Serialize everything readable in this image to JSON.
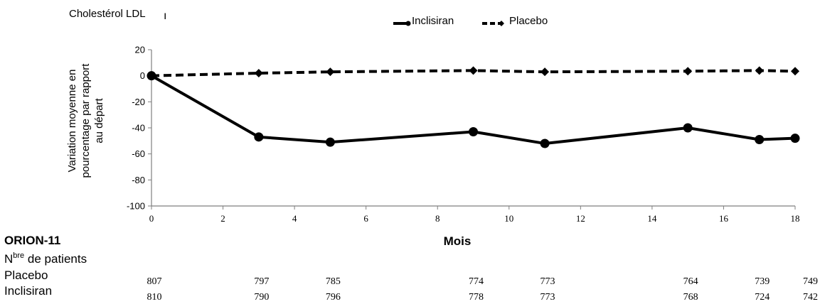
{
  "chart_data": {
    "type": "line",
    "title": "Cholestérol LDL",
    "ylabel": [
      "Variation moyenne en",
      "pourcentage par rapport",
      "au départ"
    ],
    "xlabel": "Mois",
    "xlim": [
      0,
      18
    ],
    "ylim": [
      -100,
      20
    ],
    "xticks": [
      0,
      2,
      4,
      6,
      8,
      10,
      12,
      14,
      16,
      18
    ],
    "yticks": [
      20,
      0,
      -20,
      -40,
      -60,
      -80,
      -100
    ],
    "ytick_labels": [
      "20",
      "0",
      "-20",
      "-40",
      "-60",
      "-80",
      "-100"
    ],
    "grid": false,
    "legend_position": "top-center",
    "series": [
      {
        "name": "Inclisiran",
        "style": "solid",
        "marker": "circle",
        "color": "#000000",
        "points": [
          [
            0,
            0
          ],
          [
            3,
            -47
          ],
          [
            5,
            -51
          ],
          [
            9,
            -43
          ],
          [
            11,
            -52
          ],
          [
            15,
            -40
          ],
          [
            17,
            -49
          ],
          [
            18,
            -48
          ]
        ]
      },
      {
        "name": "Placebo",
        "style": "dashed",
        "marker": "diamond",
        "color": "#000000",
        "points": [
          [
            0,
            0
          ],
          [
            3,
            2
          ],
          [
            5,
            3
          ],
          [
            9,
            4
          ],
          [
            11,
            3
          ],
          [
            15,
            3.5
          ],
          [
            17,
            4
          ],
          [
            18,
            3.5
          ]
        ]
      }
    ],
    "patients_table": {
      "study": "ORION-11",
      "header_base": "N",
      "header_sup": "bre",
      "header_rest": " de patients",
      "months": [
        0,
        3,
        5,
        9,
        11,
        15,
        17,
        18
      ],
      "rows": [
        {
          "label": "Placebo",
          "values": [
            "807",
            "797",
            "785",
            "774",
            "773",
            "764",
            "739",
            "749"
          ]
        },
        {
          "label": "Inclisiran",
          "values": [
            "810",
            "790",
            "796",
            "778",
            "773",
            "768",
            "724",
            "742"
          ]
        }
      ]
    }
  }
}
